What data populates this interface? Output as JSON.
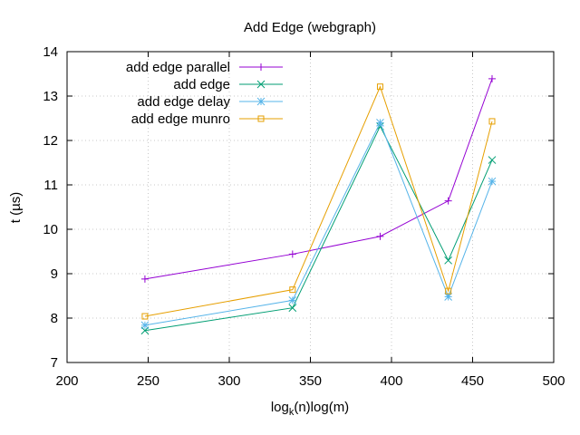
{
  "chart_data": {
    "type": "line",
    "title": "Add Edge (webgraph)",
    "xlabel_main": "log",
    "xlabel_sub": "k",
    "xlabel_rest": "(n)log(m)",
    "ylabel": "t (µs)",
    "xlim": [
      200,
      500
    ],
    "ylim": [
      7,
      14
    ],
    "xticks": [
      200,
      250,
      300,
      350,
      400,
      450,
      500
    ],
    "yticks": [
      7,
      8,
      9,
      10,
      11,
      12,
      13,
      14
    ],
    "grid": true,
    "legend_position": "top-left",
    "x": [
      248,
      339,
      393,
      435,
      462
    ],
    "series": [
      {
        "name": "add edge parallel",
        "color": "#9400d3",
        "marker": "plus",
        "values": [
          8.88,
          9.44,
          9.84,
          10.64,
          13.39
        ]
      },
      {
        "name": "add edge",
        "color": "#009e73",
        "marker": "x",
        "values": [
          7.72,
          8.23,
          12.32,
          9.3,
          11.56
        ]
      },
      {
        "name": "add edge delay",
        "color": "#56b4e9",
        "marker": "star",
        "values": [
          7.84,
          8.4,
          12.4,
          8.48,
          11.08
        ]
      },
      {
        "name": "add edge munro",
        "color": "#e69f00",
        "marker": "square",
        "values": [
          8.04,
          8.64,
          13.21,
          8.61,
          12.43
        ]
      }
    ]
  }
}
